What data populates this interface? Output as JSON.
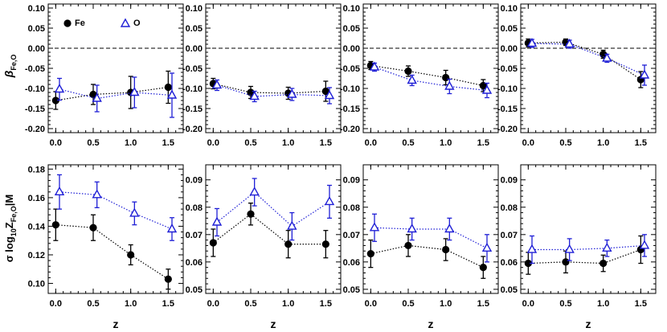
{
  "colors": {
    "fe": "#000000",
    "o": "#1f1fd6",
    "frame": "#000000"
  },
  "legend": {
    "fe": "Fe",
    "o": "O"
  },
  "ylabels": {
    "beta_main": "β",
    "beta_sub": "Fe,O",
    "sigma_pre": "σ log",
    "sigma_ten": "10",
    "sigma_mid": "Z",
    "sigma_sub": "Fe,O",
    "sigma_post": "|M"
  },
  "chart_data": [
    {
      "id": "beta-1",
      "type": "scatter",
      "title": "",
      "xlabel": "",
      "ylabel": "β Fe,O",
      "xlim": [
        -0.1,
        1.7
      ],
      "ylim": [
        -0.21,
        0.11
      ],
      "xticks": [
        {
          "v": 0,
          "t": "0.0"
        },
        {
          "v": 0.5,
          "t": "0.5"
        },
        {
          "v": 1,
          "t": "1.0"
        },
        {
          "v": 1.5,
          "t": "1.5"
        }
      ],
      "yticks": [
        {
          "v": 0.1,
          "t": "0.10"
        },
        {
          "v": 0.05,
          "t": "0.05"
        },
        {
          "v": 0,
          "t": "0.00"
        },
        {
          "v": -0.05,
          "t": "-0.05"
        },
        {
          "v": -0.1,
          "t": "-0.10"
        },
        {
          "v": -0.15,
          "t": "-0.15"
        },
        {
          "v": -0.2,
          "t": "-0.20"
        }
      ],
      "zero_line": true,
      "series": [
        {
          "name": "Fe",
          "marker": "circle",
          "x": [
            0,
            0.5,
            1,
            1.5
          ],
          "values": [
            -0.13,
            -0.115,
            -0.11,
            -0.097
          ],
          "err": [
            0.022,
            0.025,
            0.04,
            0.04
          ]
        },
        {
          "name": "O",
          "marker": "triangle",
          "x": [
            0.05,
            0.55,
            1.05,
            1.55
          ],
          "values": [
            -0.102,
            -0.125,
            -0.11,
            -0.117
          ],
          "err": [
            0.027,
            0.033,
            0.038,
            0.055
          ]
        }
      ]
    },
    {
      "id": "beta-2",
      "type": "scatter",
      "title": "",
      "xlabel": "",
      "ylabel": "",
      "xlim": [
        -0.1,
        1.7
      ],
      "ylim": [
        -0.21,
        0.11
      ],
      "xticks": [
        {
          "v": 0,
          "t": "0.0"
        },
        {
          "v": 0.5,
          "t": "0.5"
        },
        {
          "v": 1,
          "t": "1.0"
        },
        {
          "v": 1.5,
          "t": "1.5"
        }
      ],
      "yticks": [
        {
          "v": 0.1,
          "t": "0.10"
        },
        {
          "v": 0.05,
          "t": "0.05"
        },
        {
          "v": 0,
          "t": "0.00"
        },
        {
          "v": -0.05,
          "t": "-0.05"
        },
        {
          "v": -0.1,
          "t": "-0.10"
        },
        {
          "v": -0.15,
          "t": "-0.15"
        },
        {
          "v": -0.2,
          "t": "-0.20"
        }
      ],
      "zero_line": true,
      "series": [
        {
          "name": "Fe",
          "marker": "circle",
          "x": [
            0,
            0.5,
            1,
            1.5
          ],
          "values": [
            -0.088,
            -0.11,
            -0.112,
            -0.107
          ],
          "err": [
            0.013,
            0.015,
            0.015,
            0.025
          ]
        },
        {
          "name": "O",
          "marker": "triangle",
          "x": [
            0.05,
            0.55,
            1.05,
            1.55
          ],
          "values": [
            -0.092,
            -0.12,
            -0.115,
            -0.118
          ],
          "err": [
            0.013,
            0.013,
            0.015,
            0.02
          ]
        }
      ]
    },
    {
      "id": "beta-3",
      "type": "scatter",
      "title": "",
      "xlabel": "",
      "ylabel": "",
      "xlim": [
        -0.1,
        1.7
      ],
      "ylim": [
        -0.21,
        0.11
      ],
      "xticks": [
        {
          "v": 0,
          "t": "0.0"
        },
        {
          "v": 0.5,
          "t": "0.5"
        },
        {
          "v": 1,
          "t": "1.0"
        },
        {
          "v": 1.5,
          "t": "1.5"
        }
      ],
      "yticks": [
        {
          "v": 0.1,
          "t": "0.10"
        },
        {
          "v": 0.05,
          "t": "0.05"
        },
        {
          "v": 0,
          "t": "0.00"
        },
        {
          "v": -0.05,
          "t": "-0.05"
        },
        {
          "v": -0.1,
          "t": "-0.10"
        },
        {
          "v": -0.15,
          "t": "-0.15"
        },
        {
          "v": -0.2,
          "t": "-0.20"
        }
      ],
      "zero_line": true,
      "series": [
        {
          "name": "Fe",
          "marker": "circle",
          "x": [
            0,
            0.5,
            1,
            1.5
          ],
          "values": [
            -0.043,
            -0.057,
            -0.073,
            -0.093
          ],
          "err": [
            0.01,
            0.013,
            0.018,
            0.015
          ]
        },
        {
          "name": "O",
          "marker": "triangle",
          "x": [
            0.05,
            0.55,
            1.05,
            1.55
          ],
          "values": [
            -0.047,
            -0.08,
            -0.095,
            -0.105
          ],
          "err": [
            0.01,
            0.013,
            0.018,
            0.018
          ]
        }
      ]
    },
    {
      "id": "beta-4",
      "type": "scatter",
      "title": "",
      "xlabel": "",
      "ylabel": "",
      "xlim": [
        -0.1,
        1.7
      ],
      "ylim": [
        -0.21,
        0.11
      ],
      "xticks": [
        {
          "v": 0,
          "t": "0.0"
        },
        {
          "v": 0.5,
          "t": "0.5"
        },
        {
          "v": 1,
          "t": "1.0"
        },
        {
          "v": 1.5,
          "t": "1.5"
        }
      ],
      "yticks": [
        {
          "v": 0.1,
          "t": "0.10"
        },
        {
          "v": 0.05,
          "t": "0.05"
        },
        {
          "v": 0,
          "t": "0.00"
        },
        {
          "v": -0.05,
          "t": "-0.05"
        },
        {
          "v": -0.1,
          "t": "-0.10"
        },
        {
          "v": -0.15,
          "t": "-0.15"
        },
        {
          "v": -0.2,
          "t": "-0.20"
        }
      ],
      "zero_line": true,
      "series": [
        {
          "name": "Fe",
          "marker": "circle",
          "x": [
            0,
            0.5,
            1,
            1.5
          ],
          "values": [
            0.013,
            0.015,
            -0.015,
            -0.078
          ],
          "err": [
            0.01,
            0.008,
            0.01,
            0.02
          ]
        },
        {
          "name": "O",
          "marker": "triangle",
          "x": [
            0.05,
            0.55,
            1.05,
            1.55
          ],
          "values": [
            0.012,
            0.01,
            -0.025,
            -0.067
          ],
          "err": [
            0.01,
            0.01,
            0.01,
            0.025
          ]
        }
      ]
    },
    {
      "id": "sigma-1",
      "type": "scatter",
      "title": "",
      "xlabel": "z",
      "ylabel": "σ log10 Z Fe,O |M",
      "xlim": [
        -0.1,
        1.7
      ],
      "ylim": [
        0.093,
        0.183
      ],
      "xticks": [
        {
          "v": 0,
          "t": "0.0"
        },
        {
          "v": 0.5,
          "t": "0.5"
        },
        {
          "v": 1,
          "t": "1.0"
        },
        {
          "v": 1.5,
          "t": "1.5"
        }
      ],
      "yticks": [
        {
          "v": 0.18,
          "t": "0.18"
        },
        {
          "v": 0.16,
          "t": "0.16"
        },
        {
          "v": 0.14,
          "t": "0.14"
        },
        {
          "v": 0.12,
          "t": "0.12"
        },
        {
          "v": 0.1,
          "t": "0.10"
        }
      ],
      "zero_line": false,
      "series": [
        {
          "name": "Fe",
          "marker": "circle",
          "x": [
            0,
            0.5,
            1,
            1.5
          ],
          "values": [
            0.141,
            0.139,
            0.12,
            0.103
          ],
          "err": [
            0.011,
            0.009,
            0.007,
            0.007
          ]
        },
        {
          "name": "O",
          "marker": "triangle",
          "x": [
            0.05,
            0.55,
            1.05,
            1.55
          ],
          "values": [
            0.164,
            0.162,
            0.149,
            0.138
          ],
          "err": [
            0.012,
            0.009,
            0.008,
            0.008
          ]
        }
      ]
    },
    {
      "id": "sigma-2",
      "type": "scatter",
      "title": "",
      "xlabel": "z",
      "ylabel": "",
      "xlim": [
        -0.1,
        1.7
      ],
      "ylim": [
        0.0485,
        0.0955
      ],
      "xticks": [
        {
          "v": 0,
          "t": "0.0"
        },
        {
          "v": 0.5,
          "t": "0.5"
        },
        {
          "v": 1,
          "t": "1.0"
        },
        {
          "v": 1.5,
          "t": "1.5"
        }
      ],
      "yticks": [
        {
          "v": 0.09,
          "t": "0.09"
        },
        {
          "v": 0.08,
          "t": "0.08"
        },
        {
          "v": 0.07,
          "t": "0.07"
        },
        {
          "v": 0.06,
          "t": "0.06"
        },
        {
          "v": 0.05,
          "t": "0.05"
        }
      ],
      "zero_line": false,
      "series": [
        {
          "name": "Fe",
          "marker": "circle",
          "x": [
            0,
            0.5,
            1,
            1.5
          ],
          "values": [
            0.067,
            0.0775,
            0.0665,
            0.0665
          ],
          "err": [
            0.005,
            0.004,
            0.005,
            0.005
          ]
        },
        {
          "name": "O",
          "marker": "triangle",
          "x": [
            0.05,
            0.55,
            1.05,
            1.55
          ],
          "values": [
            0.0745,
            0.0855,
            0.073,
            0.082
          ],
          "err": [
            0.005,
            0.005,
            0.005,
            0.006
          ]
        }
      ]
    },
    {
      "id": "sigma-3",
      "type": "scatter",
      "title": "",
      "xlabel": "z",
      "ylabel": "",
      "xlim": [
        -0.1,
        1.7
      ],
      "ylim": [
        0.0485,
        0.0955
      ],
      "xticks": [
        {
          "v": 0,
          "t": "0.0"
        },
        {
          "v": 0.5,
          "t": "0.5"
        },
        {
          "v": 1,
          "t": "1.0"
        },
        {
          "v": 1.5,
          "t": "1.5"
        }
      ],
      "yticks": [
        {
          "v": 0.09,
          "t": "0.09"
        },
        {
          "v": 0.08,
          "t": "0.08"
        },
        {
          "v": 0.07,
          "t": "0.07"
        },
        {
          "v": 0.06,
          "t": "0.06"
        },
        {
          "v": 0.05,
          "t": "0.05"
        }
      ],
      "zero_line": false,
      "series": [
        {
          "name": "Fe",
          "marker": "circle",
          "x": [
            0,
            0.5,
            1,
            1.5
          ],
          "values": [
            0.063,
            0.066,
            0.0645,
            0.058
          ],
          "err": [
            0.005,
            0.004,
            0.004,
            0.004
          ]
        },
        {
          "name": "O",
          "marker": "triangle",
          "x": [
            0.05,
            0.55,
            1.05,
            1.55
          ],
          "values": [
            0.0725,
            0.072,
            0.072,
            0.065
          ],
          "err": [
            0.005,
            0.004,
            0.004,
            0.005
          ]
        }
      ]
    },
    {
      "id": "sigma-4",
      "type": "scatter",
      "title": "",
      "xlabel": "z",
      "ylabel": "",
      "xlim": [
        -0.1,
        1.7
      ],
      "ylim": [
        0.0485,
        0.0955
      ],
      "xticks": [
        {
          "v": 0,
          "t": "0.0"
        },
        {
          "v": 0.5,
          "t": "0.5"
        },
        {
          "v": 1,
          "t": "1.0"
        },
        {
          "v": 1.5,
          "t": "1.5"
        }
      ],
      "yticks": [
        {
          "v": 0.09,
          "t": "0.09"
        },
        {
          "v": 0.08,
          "t": "0.08"
        },
        {
          "v": 0.07,
          "t": "0.07"
        },
        {
          "v": 0.06,
          "t": "0.06"
        },
        {
          "v": 0.05,
          "t": "0.05"
        }
      ],
      "zero_line": false,
      "series": [
        {
          "name": "Fe",
          "marker": "circle",
          "x": [
            0,
            0.5,
            1,
            1.5
          ],
          "values": [
            0.0595,
            0.06,
            0.0595,
            0.0645
          ],
          "err": [
            0.004,
            0.004,
            0.003,
            0.005
          ]
        },
        {
          "name": "O",
          "marker": "triangle",
          "x": [
            0.05,
            0.55,
            1.05,
            1.55
          ],
          "values": [
            0.0645,
            0.0645,
            0.065,
            0.066
          ],
          "err": [
            0.005,
            0.004,
            0.003,
            0.004
          ]
        }
      ]
    }
  ]
}
